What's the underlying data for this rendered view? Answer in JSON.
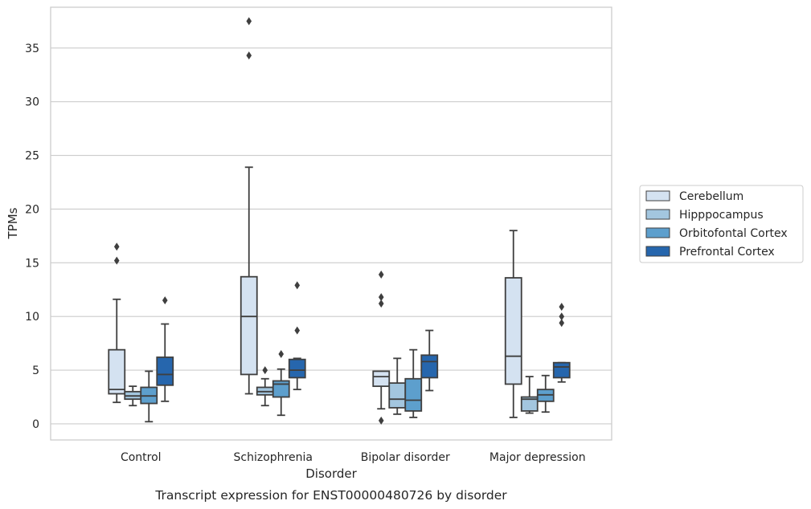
{
  "chart_data": {
    "type": "box",
    "title": "",
    "caption": "Transcript expression for ENST00000480726 by disorder",
    "xlabel": "Disorder",
    "ylabel": "TPMs",
    "ylim": [
      -1.5,
      38.8
    ],
    "yticks": [
      0,
      5,
      10,
      15,
      20,
      25,
      30,
      35
    ],
    "grid": "horizontal",
    "legend_position": "right",
    "categories": [
      "Control",
      "Schizophrenia",
      "Bipolar disorder",
      "Major depression"
    ],
    "series": [
      {
        "name": "Cerebellum",
        "color": "#d4e2f1",
        "boxes": [
          {
            "whisker_low": 2.0,
            "q1": 2.8,
            "median": 3.2,
            "q3": 6.9,
            "whisker_high": 11.6,
            "outliers": [
              15.2,
              16.5
            ]
          },
          {
            "whisker_low": 2.8,
            "q1": 4.6,
            "median": 10.0,
            "q3": 13.7,
            "whisker_high": 23.9,
            "outliers": [
              34.3,
              37.5
            ]
          },
          {
            "whisker_low": 1.4,
            "q1": 3.5,
            "median": 4.4,
            "q3": 4.9,
            "whisker_high": 4.9,
            "outliers": [
              0.3,
              11.2,
              11.8,
              13.9
            ]
          },
          {
            "whisker_low": 0.6,
            "q1": 3.7,
            "median": 6.3,
            "q3": 13.6,
            "whisker_high": 18.0,
            "outliers": []
          }
        ]
      },
      {
        "name": "Hipppocampus",
        "color": "#a3c6df",
        "boxes": [
          {
            "whisker_low": 1.7,
            "q1": 2.3,
            "median": 2.6,
            "q3": 3.0,
            "whisker_high": 3.5,
            "outliers": []
          },
          {
            "whisker_low": 1.7,
            "q1": 2.7,
            "median": 3.0,
            "q3": 3.4,
            "whisker_high": 4.2,
            "outliers": [
              5.0
            ]
          },
          {
            "whisker_low": 0.9,
            "q1": 1.5,
            "median": 2.3,
            "q3": 3.8,
            "whisker_high": 6.1,
            "outliers": []
          },
          {
            "whisker_low": 1.0,
            "q1": 1.2,
            "median": 2.3,
            "q3": 2.5,
            "whisker_high": 4.4,
            "outliers": []
          }
        ]
      },
      {
        "name": "Orbitofontal Cortex",
        "color": "#5d9fcd",
        "boxes": [
          {
            "whisker_low": 0.2,
            "q1": 1.9,
            "median": 2.6,
            "q3": 3.4,
            "whisker_high": 4.9,
            "outliers": []
          },
          {
            "whisker_low": 0.8,
            "q1": 2.5,
            "median": 3.7,
            "q3": 4.0,
            "whisker_high": 5.1,
            "outliers": [
              6.5
            ]
          },
          {
            "whisker_low": 0.6,
            "q1": 1.2,
            "median": 2.2,
            "q3": 4.2,
            "whisker_high": 6.9,
            "outliers": []
          },
          {
            "whisker_low": 1.1,
            "q1": 2.1,
            "median": 2.7,
            "q3": 3.2,
            "whisker_high": 4.5,
            "outliers": []
          }
        ]
      },
      {
        "name": "Prefrontal Cortex",
        "color": "#2666ad",
        "boxes": [
          {
            "whisker_low": 2.1,
            "q1": 3.6,
            "median": 4.6,
            "q3": 6.2,
            "whisker_high": 9.3,
            "outliers": [
              11.5
            ]
          },
          {
            "whisker_low": 3.2,
            "q1": 4.3,
            "median": 5.0,
            "q3": 6.0,
            "whisker_high": 6.1,
            "outliers": [
              8.7,
              12.9
            ]
          },
          {
            "whisker_low": 3.1,
            "q1": 4.3,
            "median": 5.8,
            "q3": 6.4,
            "whisker_high": 8.7,
            "outliers": []
          },
          {
            "whisker_low": 3.9,
            "q1": 4.3,
            "median": 5.3,
            "q3": 5.7,
            "whisker_high": 5.7,
            "outliers": [
              9.4,
              10.0,
              10.9
            ]
          }
        ]
      }
    ]
  }
}
